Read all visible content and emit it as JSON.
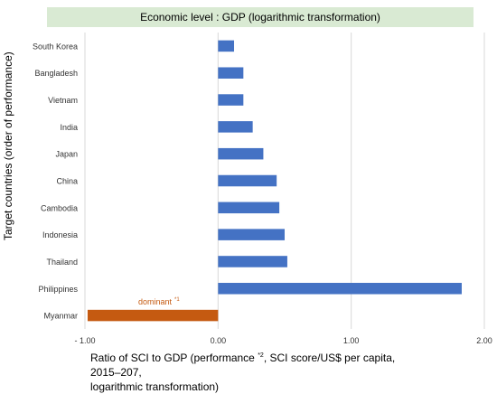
{
  "chart_data": {
    "type": "bar",
    "orientation": "horizontal",
    "title": "Economic level : GDP (logarithmic transformation)",
    "ylabel": "Target countries (order of performance)",
    "xlabel": {
      "part1": "Ratio of SCI to GDP (performance ",
      "sup1": "*2",
      "part2": ", SCI score/US$ per capita, 2015–207,",
      "line2": "logarithmic transformation)"
    },
    "xlim": [
      -1.0,
      2.0
    ],
    "x_ticks": [
      -1.0,
      0.0,
      1.0,
      2.0
    ],
    "x_tick_labels": [
      "- 1.00",
      "0.00",
      "1.00",
      "2.00"
    ],
    "grid": "vertical",
    "categories": [
      "South Korea",
      "Bangladesh",
      "Vietnam",
      "India",
      "Japan",
      "China",
      "Cambodia",
      "Indonesia",
      "Thailand",
      "Philippines",
      "Myanmar"
    ],
    "values": [
      0.12,
      0.19,
      0.19,
      0.26,
      0.34,
      0.44,
      0.46,
      0.5,
      0.52,
      1.83,
      -0.98
    ],
    "colors": {
      "default": "#4472c4",
      "highlight": "#c55a11",
      "title_bg": "#d9ead3",
      "grid": "#d9d9d9"
    },
    "highlight_category": "Myanmar",
    "annotation": {
      "text": "dominant",
      "sup": "*1",
      "category": "Myanmar"
    }
  }
}
